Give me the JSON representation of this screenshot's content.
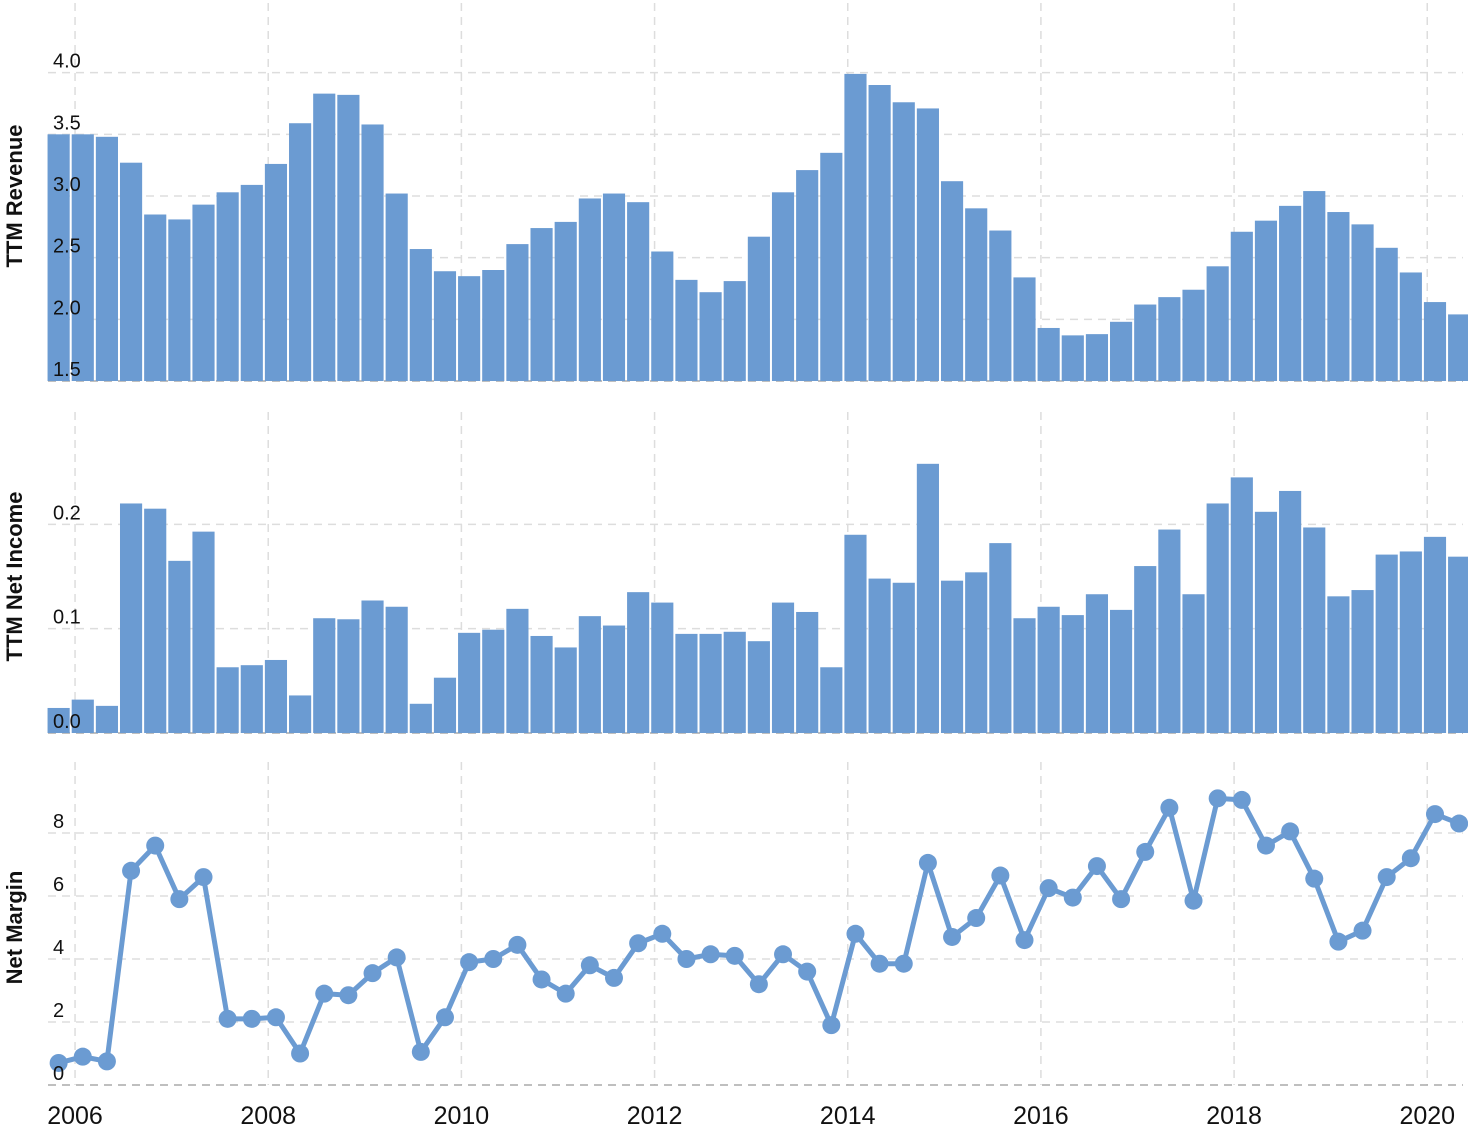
{
  "chart_data": [
    {
      "type": "bar",
      "y_label": "TTM Revenue",
      "color": "#6b9bd2",
      "x": [
        2005.83,
        2006.08,
        2006.33,
        2006.58,
        2006.83,
        2007.08,
        2007.33,
        2007.58,
        2007.83,
        2008.08,
        2008.33,
        2008.58,
        2008.83,
        2009.08,
        2009.33,
        2009.58,
        2009.83,
        2010.08,
        2010.33,
        2010.58,
        2010.83,
        2011.08,
        2011.33,
        2011.58,
        2011.83,
        2012.08,
        2012.33,
        2012.58,
        2012.83,
        2013.08,
        2013.33,
        2013.58,
        2013.83,
        2014.08,
        2014.33,
        2014.58,
        2014.83,
        2015.08,
        2015.33,
        2015.58,
        2015.83,
        2016.08,
        2016.33,
        2016.58,
        2016.83,
        2017.08,
        2017.33,
        2017.58,
        2017.83,
        2018.08,
        2018.33,
        2018.58,
        2018.83,
        2019.08,
        2019.33,
        2019.58,
        2019.83,
        2020.08,
        2020.33
      ],
      "values": [
        3.5,
        3.5,
        3.48,
        3.27,
        2.85,
        2.81,
        2.93,
        3.03,
        3.09,
        3.26,
        3.59,
        3.83,
        3.82,
        3.58,
        3.02,
        2.57,
        2.39,
        2.35,
        2.4,
        2.61,
        2.74,
        2.79,
        2.98,
        3.02,
        2.95,
        2.55,
        2.32,
        2.22,
        2.31,
        2.67,
        3.03,
        3.21,
        3.35,
        3.99,
        3.9,
        3.76,
        3.71,
        3.12,
        2.9,
        2.72,
        2.34,
        1.93,
        1.87,
        1.88,
        1.98,
        2.12,
        2.18,
        2.24,
        2.43,
        2.71,
        2.8,
        2.92,
        3.04,
        2.87,
        2.77,
        2.58,
        2.38,
        2.14,
        2.04
      ],
      "xlim": [
        2005.72,
        2020.37
      ],
      "ylim": [
        1.5,
        4.5
      ],
      "yticks": [
        1.5,
        {
          "value": 2,
          "label": "2.0"
        },
        2.5,
        {
          "value": 3,
          "label": "3.0"
        },
        3.5,
        {
          "value": 4,
          "label": "4.0"
        }
      ],
      "grid": true
    },
    {
      "type": "bar",
      "y_label": "TTM Net Income",
      "color": "#6b9bd2",
      "x": [
        2005.83,
        2006.08,
        2006.33,
        2006.58,
        2006.83,
        2007.08,
        2007.33,
        2007.58,
        2007.83,
        2008.08,
        2008.33,
        2008.58,
        2008.83,
        2009.08,
        2009.33,
        2009.58,
        2009.83,
        2010.08,
        2010.33,
        2010.58,
        2010.83,
        2011.08,
        2011.33,
        2011.58,
        2011.83,
        2012.08,
        2012.33,
        2012.58,
        2012.83,
        2013.08,
        2013.33,
        2013.58,
        2013.83,
        2014.08,
        2014.33,
        2014.58,
        2014.83,
        2015.08,
        2015.33,
        2015.58,
        2015.83,
        2016.08,
        2016.33,
        2016.58,
        2016.83,
        2017.08,
        2017.33,
        2017.58,
        2017.83,
        2018.08,
        2018.33,
        2018.58,
        2018.83,
        2019.08,
        2019.33,
        2019.58,
        2019.83,
        2020.08,
        2020.33
      ],
      "values": [
        0.024,
        0.032,
        0.026,
        0.22,
        0.215,
        0.165,
        0.193,
        0.063,
        0.065,
        0.07,
        0.036,
        0.11,
        0.109,
        0.127,
        0.121,
        0.028,
        0.053,
        0.096,
        0.099,
        0.119,
        0.093,
        0.082,
        0.112,
        0.103,
        0.135,
        0.125,
        0.095,
        0.095,
        0.097,
        0.088,
        0.125,
        0.116,
        0.063,
        0.19,
        0.148,
        0.144,
        0.258,
        0.146,
        0.154,
        0.182,
        0.11,
        0.121,
        0.113,
        0.133,
        0.118,
        0.16,
        0.195,
        0.133,
        0.22,
        0.245,
        0.212,
        0.232,
        0.197,
        0.131,
        0.137,
        0.171,
        0.174,
        0.188,
        0.169
      ],
      "xlim": [
        2005.72,
        2020.37
      ],
      "ylim": [
        0,
        0.3
      ],
      "yticks": [
        {
          "value": 0,
          "label": "0.0"
        },
        0.1,
        0.2
      ],
      "grid": true
    },
    {
      "type": "line",
      "y_label": "Net Margin",
      "color": "#6b9bd2",
      "x": [
        2005.83,
        2006.08,
        2006.33,
        2006.58,
        2006.83,
        2007.08,
        2007.33,
        2007.58,
        2007.83,
        2008.08,
        2008.33,
        2008.58,
        2008.83,
        2009.08,
        2009.33,
        2009.58,
        2009.83,
        2010.08,
        2010.33,
        2010.58,
        2010.83,
        2011.08,
        2011.33,
        2011.58,
        2011.83,
        2012.08,
        2012.33,
        2012.58,
        2012.83,
        2013.08,
        2013.33,
        2013.58,
        2013.83,
        2014.08,
        2014.33,
        2014.58,
        2014.83,
        2015.08,
        2015.33,
        2015.58,
        2015.83,
        2016.08,
        2016.33,
        2016.58,
        2016.83,
        2017.08,
        2017.33,
        2017.58,
        2017.83,
        2018.08,
        2018.33,
        2018.58,
        2018.83,
        2019.08,
        2019.33,
        2019.58,
        2019.83,
        2020.08,
        2020.33
      ],
      "values": [
        0.7,
        0.9,
        0.75,
        6.8,
        7.6,
        5.9,
        6.6,
        2.1,
        2.1,
        2.15,
        1.0,
        2.9,
        2.85,
        3.55,
        4.05,
        1.05,
        2.15,
        3.9,
        4.0,
        4.45,
        3.35,
        2.9,
        3.8,
        3.4,
        4.5,
        4.8,
        4.0,
        4.15,
        4.1,
        3.2,
        4.15,
        3.6,
        1.9,
        4.8,
        3.85,
        3.85,
        7.05,
        4.7,
        5.3,
        6.65,
        4.6,
        6.25,
        5.95,
        6.95,
        5.9,
        7.4,
        8.8,
        5.85,
        9.1,
        9.05,
        7.6,
        8.05,
        6.55,
        4.55,
        4.9,
        6.6,
        7.2,
        8.6,
        8.3
      ],
      "xlim": [
        2005.72,
        2020.37
      ],
      "ylim": [
        0,
        10
      ],
      "xticks": [
        2006,
        2008,
        2010,
        2012,
        2014,
        2016,
        2018,
        2020
      ],
      "yticks": [
        0,
        2,
        4,
        6,
        8
      ],
      "grid": true
    }
  ]
}
